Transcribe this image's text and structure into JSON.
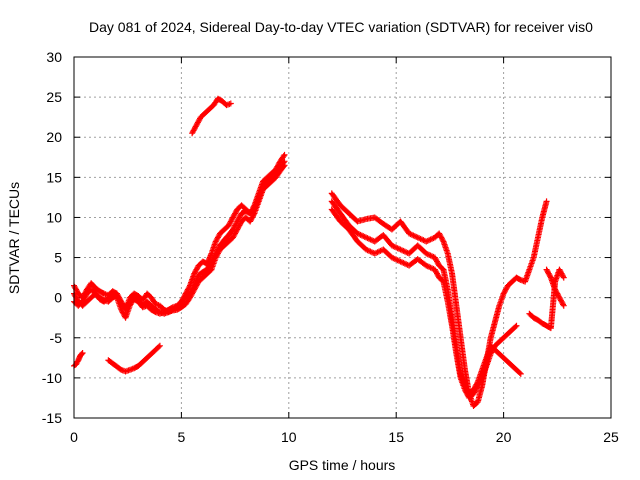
{
  "chart_data": {
    "type": "scatter",
    "title": "Day 081 of 2024, Sidereal Day-to-day VTEC variation (SDTVAR) for receiver vis0",
    "xlabel": "GPS time / hours",
    "ylabel": "SDTVAR / TECUs",
    "xlim": [
      0,
      25
    ],
    "ylim": [
      -15,
      30
    ],
    "xticks": [
      0,
      5,
      10,
      15,
      20,
      25
    ],
    "yticks": [
      -15,
      -10,
      -5,
      0,
      5,
      10,
      15,
      20,
      25,
      30
    ],
    "grid": true,
    "legend": "none",
    "marker": "plus",
    "color": "#ff0000",
    "series": [
      {
        "x": [
          0.0,
          0.1,
          0.2,
          0.3,
          0.4
        ],
        "y": [
          -8.5,
          -8.3,
          -7.8,
          -7.2,
          -6.9
        ]
      },
      {
        "x": [
          0.0,
          0.2,
          0.4,
          0.6,
          0.8,
          1.0,
          1.2,
          1.4,
          1.6,
          1.8,
          2.0,
          2.2,
          2.4,
          2.6,
          2.8,
          3.0,
          3.2,
          3.4,
          3.6,
          3.8,
          4.0,
          4.2,
          4.4,
          4.6,
          4.8,
          5.0,
          5.2,
          5.4,
          5.6,
          5.8,
          6.0,
          6.2,
          6.4,
          6.6,
          6.8,
          7.0,
          7.2,
          7.4,
          7.6,
          7.8,
          8.0,
          8.2,
          8.4,
          8.6,
          8.8,
          9.0,
          9.2,
          9.4,
          9.6,
          9.8
        ],
        "y": [
          1.5,
          0.5,
          0.0,
          1.0,
          1.8,
          1.2,
          0.8,
          0.5,
          0.3,
          0.8,
          0.5,
          -0.5,
          -1.5,
          0.0,
          0.5,
          0.2,
          -0.3,
          0.5,
          0.0,
          -0.8,
          -1.0,
          -1.5,
          -1.8,
          -1.5,
          -1.2,
          -0.5,
          0.5,
          1.5,
          3.0,
          4.0,
          4.5,
          4.2,
          5.5,
          7.0,
          8.0,
          8.5,
          9.0,
          10.0,
          11.0,
          11.5,
          11.0,
          10.5,
          11.5,
          13.0,
          14.5,
          15.0,
          15.5,
          16.0,
          17.0,
          17.8
        ]
      },
      {
        "x": [
          0.0,
          0.2,
          0.4,
          0.6,
          0.8,
          1.0,
          1.2,
          1.4,
          1.6,
          1.8,
          2.0,
          2.2,
          2.4,
          2.6,
          2.8,
          3.0,
          3.2,
          3.4,
          3.6,
          3.8,
          4.0,
          4.2,
          4.4,
          4.6,
          4.8,
          5.0,
          5.2,
          5.4,
          5.6,
          5.8,
          6.0,
          6.2,
          6.4,
          6.6,
          6.8,
          7.0,
          7.2,
          7.4,
          7.6,
          7.8,
          8.0,
          8.2,
          8.4,
          8.6,
          8.8,
          9.0,
          9.2,
          9.4,
          9.6,
          9.8
        ],
        "y": [
          0.5,
          -0.5,
          -1.0,
          -0.5,
          0.0,
          0.5,
          0.0,
          -0.3,
          -0.5,
          0.0,
          0.3,
          -0.8,
          -1.2,
          -0.5,
          -0.2,
          -0.5,
          -1.0,
          -0.5,
          -1.0,
          -1.5,
          -1.8,
          -2.0,
          -1.8,
          -1.6,
          -1.5,
          -1.2,
          -0.8,
          0.0,
          1.0,
          2.0,
          2.5,
          3.0,
          3.5,
          5.0,
          6.0,
          6.5,
          7.0,
          7.5,
          8.5,
          9.5,
          10.0,
          9.5,
          10.5,
          12.0,
          13.5,
          14.0,
          14.5,
          15.0,
          15.8,
          16.5
        ]
      },
      {
        "x": [
          0.0,
          0.2,
          0.4,
          0.6,
          0.8,
          1.0,
          1.2,
          1.4,
          1.6,
          1.8,
          2.0,
          2.2,
          2.4,
          2.6,
          2.8,
          3.0,
          3.2,
          3.4,
          3.6,
          3.8,
          4.0,
          4.2,
          4.4,
          4.6,
          4.8,
          5.0,
          5.2,
          5.4,
          5.6,
          5.8,
          6.0,
          6.2,
          6.4,
          6.6,
          6.8,
          7.0,
          7.2,
          7.4,
          7.6,
          7.8,
          8.0,
          8.2,
          8.4,
          8.6,
          8.8,
          9.0,
          9.2,
          9.4,
          9.6,
          9.8
        ],
        "y": [
          -0.5,
          -1.0,
          -0.5,
          0.5,
          1.0,
          0.5,
          -0.2,
          -0.5,
          0.0,
          0.5,
          0.0,
          -1.5,
          -2.5,
          -1.0,
          0.0,
          -0.5,
          -1.2,
          -1.0,
          -1.5,
          -1.8,
          -2.0,
          -1.8,
          -1.5,
          -1.2,
          -1.0,
          -0.5,
          0.0,
          0.5,
          1.5,
          2.8,
          3.2,
          3.5,
          4.5,
          5.5,
          6.5,
          7.2,
          7.8,
          8.5,
          9.5,
          10.5,
          10.8,
          10.5,
          11.0,
          12.5,
          13.8,
          14.5,
          15.0,
          15.5,
          16.2,
          17.0
        ]
      },
      {
        "x": [
          5.5,
          5.7,
          5.9,
          6.1,
          6.3,
          6.5,
          6.7,
          6.9,
          7.1,
          7.3
        ],
        "y": [
          20.5,
          21.5,
          22.5,
          23.0,
          23.5,
          24.0,
          24.8,
          24.5,
          24.0,
          24.2
        ]
      },
      {
        "x": [
          1.6,
          1.8,
          2.0,
          2.2,
          2.4,
          2.6,
          2.8,
          3.0,
          3.2,
          3.4,
          3.6,
          3.8,
          4.0
        ],
        "y": [
          -7.8,
          -8.2,
          -8.6,
          -9.0,
          -9.2,
          -9.0,
          -8.8,
          -8.5,
          -8.0,
          -7.5,
          -7.0,
          -6.5,
          -6.0
        ]
      },
      {
        "x": [
          12.0,
          12.4,
          12.8,
          13.2,
          13.6,
          14.0,
          14.4,
          14.8,
          15.2,
          15.6,
          16.0,
          16.4,
          16.8,
          17.0,
          17.2,
          17.4,
          17.6,
          17.8,
          18.0,
          18.2,
          18.4,
          18.6,
          18.8,
          19.0,
          19.2,
          19.4,
          19.6,
          19.8,
          20.0,
          20.2,
          20.4,
          20.6,
          20.8,
          21.0,
          21.2,
          21.4,
          21.6,
          21.8,
          22.0
        ],
        "y": [
          13.0,
          11.5,
          10.5,
          9.5,
          9.8,
          10.0,
          9.2,
          8.5,
          9.5,
          8.0,
          7.5,
          7.0,
          7.5,
          8.0,
          7.0,
          5.5,
          3.0,
          -1.0,
          -5.0,
          -9.0,
          -12.0,
          -13.5,
          -13.0,
          -11.0,
          -8.0,
          -5.0,
          -3.0,
          -1.0,
          0.5,
          1.5,
          2.0,
          2.5,
          2.2,
          2.0,
          3.5,
          5.0,
          7.5,
          10.0,
          12.0
        ]
      },
      {
        "x": [
          12.0,
          12.4,
          12.8,
          13.2,
          13.6,
          14.0,
          14.4,
          14.8,
          15.2,
          15.6,
          16.0,
          16.4,
          16.8,
          17.0,
          17.2,
          17.4,
          17.6,
          17.8,
          18.0,
          18.2,
          18.4,
          18.6,
          18.8,
          19.0,
          19.2,
          19.4,
          19.6,
          19.8,
          20.0,
          20.2,
          20.4,
          20.6,
          20.8
        ],
        "y": [
          12.0,
          10.5,
          9.0,
          8.0,
          7.5,
          7.0,
          7.8,
          6.5,
          6.0,
          5.5,
          6.5,
          5.5,
          5.0,
          4.0,
          3.5,
          1.0,
          -2.5,
          -6.0,
          -9.5,
          -11.0,
          -12.0,
          -11.5,
          -10.5,
          -9.0,
          -7.5,
          -6.0,
          -6.5,
          -7.0,
          -7.5,
          -8.0,
          -8.5,
          -9.0,
          -9.5
        ]
      },
      {
        "x": [
          12.0,
          12.4,
          12.8,
          13.2,
          13.6,
          14.0,
          14.4,
          14.8,
          15.2,
          15.6,
          16.0,
          16.4,
          16.8,
          17.0,
          17.2,
          17.4,
          17.6,
          17.8,
          18.0,
          18.2,
          18.4,
          18.6,
          18.8,
          19.0,
          19.2,
          19.4,
          19.6,
          19.8,
          20.0,
          20.2,
          20.4,
          20.6
        ],
        "y": [
          11.0,
          9.5,
          8.5,
          7.0,
          6.0,
          5.5,
          6.0,
          5.0,
          4.5,
          4.0,
          4.8,
          4.0,
          3.5,
          2.5,
          2.0,
          -0.5,
          -3.5,
          -7.0,
          -10.0,
          -11.5,
          -12.5,
          -12.0,
          -11.0,
          -10.0,
          -8.5,
          -7.0,
          -6.0,
          -5.5,
          -5.0,
          -4.5,
          -4.0,
          -3.5
        ]
      },
      {
        "x": [
          21.2,
          21.4,
          21.6,
          21.8,
          22.0,
          22.2,
          22.4,
          22.6,
          22.8
        ],
        "y": [
          -2.0,
          -2.5,
          -2.8,
          -3.2,
          -3.5,
          -3.8,
          2.0,
          3.5,
          2.5
        ]
      },
      {
        "x": [
          22.0,
          22.2,
          22.4,
          22.6,
          22.8
        ],
        "y": [
          3.5,
          2.5,
          1.0,
          0.0,
          -1.0
        ]
      }
    ]
  }
}
